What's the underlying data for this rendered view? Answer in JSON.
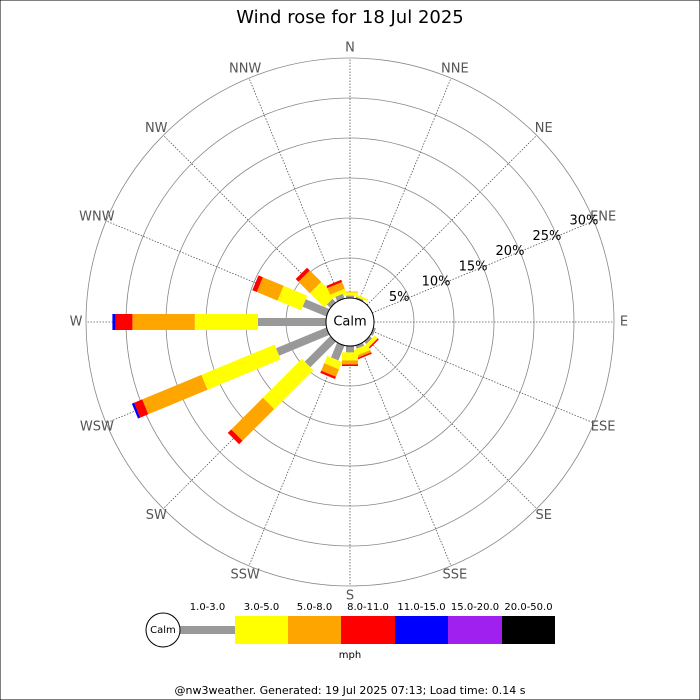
{
  "chart_data": {
    "type": "windrose",
    "title": "Wind rose for 18 Jul 2025",
    "categories": [
      "N",
      "NNE",
      "NE",
      "ENE",
      "E",
      "ESE",
      "SE",
      "SSE",
      "S",
      "SSW",
      "SW",
      "WSW",
      "W",
      "WNW",
      "NW",
      "NNW"
    ],
    "calm_label": "Calm",
    "rlim": [
      0,
      30
    ],
    "rticks": [
      {
        "value": 5,
        "label": "5%"
      },
      {
        "value": 10,
        "label": "10%"
      },
      {
        "value": 15,
        "label": "15%"
      },
      {
        "value": 20,
        "label": "20%"
      },
      {
        "value": 25,
        "label": "25%"
      },
      {
        "value": 30,
        "label": "30%"
      }
    ],
    "series": [
      {
        "name": "1.0-3.0",
        "color": "#999999",
        "values": [
          0.3,
          0.2,
          0,
          0,
          0,
          0.3,
          0.4,
          0.4,
          0.8,
          2,
          4.5,
          6.8,
          8.5,
          3.2,
          0.6,
          0.6
        ]
      },
      {
        "name": "3.0-5.0",
        "color": "#ffff00",
        "values": [
          0.4,
          0.3,
          0,
          0,
          0,
          0,
          0.5,
          0.8,
          1,
          1,
          6.9,
          9.9,
          7.9,
          3.2,
          2.5,
          0.5
        ]
      },
      {
        "name": "5.0-8.0",
        "color": "#ffa500",
        "values": [
          0.1,
          0,
          0,
          0,
          0,
          0,
          0,
          0.3,
          0.5,
          1,
          5.6,
          8,
          7.8,
          2.8,
          2,
          0.9
        ]
      },
      {
        "name": "8.0-11.0",
        "color": "#ff0000",
        "values": [
          0,
          0,
          0,
          0,
          0,
          0,
          0.2,
          0.2,
          0.2,
          0.3,
          0.6,
          1.1,
          2.1,
          0.6,
          0.5,
          0.3
        ]
      },
      {
        "name": "11.0-15.0",
        "color": "#0000ff",
        "values": [
          0,
          0,
          0,
          0,
          0,
          0,
          0,
          0,
          0,
          0,
          0,
          0.3,
          0.4,
          0,
          0,
          0
        ]
      },
      {
        "name": "15.0-20.0",
        "color": "#a020f0",
        "values": [
          0,
          0,
          0,
          0,
          0,
          0,
          0,
          0,
          0,
          0,
          0,
          0,
          0,
          0,
          0,
          0
        ]
      },
      {
        "name": "20.0-50.0",
        "color": "#000000",
        "values": [
          0,
          0,
          0,
          0,
          0,
          0,
          0,
          0,
          0,
          0,
          0,
          0,
          0,
          0,
          0,
          0
        ]
      }
    ],
    "unit": "mph",
    "footer": "@nw3weather. Generated: 19 Jul 2025 07:13; Load time: 0.14 s"
  }
}
